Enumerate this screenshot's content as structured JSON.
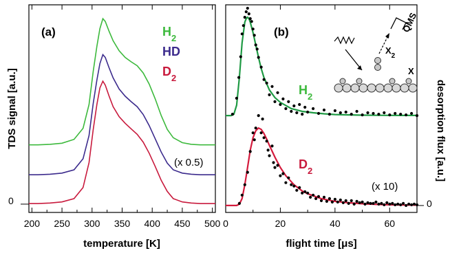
{
  "colors": {
    "H2": "#3cb93c",
    "HD": "#3b2a8c",
    "D2": "#c8193c",
    "fit_H2": "#1f9a44",
    "fit_D2": "#d41a3c",
    "points": "#000000"
  },
  "chart_data": [
    {
      "type": "line",
      "panel_label": "(a)",
      "xlabel": "temperature [K]",
      "ylabel": "TDS signal [a.u.]",
      "xlim": [
        195,
        505
      ],
      "xticks": [
        200,
        250,
        300,
        350,
        400,
        450,
        500
      ],
      "ylim": [
        -0.15,
        3.6
      ],
      "zero_label": "0",
      "annotation": "(x 0.5)",
      "series": [
        {
          "name": "H",
          "sub": "2",
          "offset": 1.05,
          "color": "H2",
          "x": [
            195,
            210,
            230,
            250,
            270,
            285,
            295,
            302,
            308,
            313,
            318,
            322,
            328,
            335,
            345,
            355,
            365,
            375,
            385,
            395,
            405,
            415,
            425,
            435,
            450,
            465,
            480,
            495,
            505
          ],
          "y": [
            0.02,
            0.02,
            0.03,
            0.05,
            0.12,
            0.32,
            0.75,
            1.35,
            1.8,
            2.12,
            2.3,
            2.25,
            2.08,
            1.9,
            1.72,
            1.6,
            1.52,
            1.45,
            1.32,
            1.12,
            0.85,
            0.55,
            0.3,
            0.15,
            0.06,
            0.03,
            0.02,
            0.02,
            0.02
          ]
        },
        {
          "name": "HD",
          "sub": "",
          "offset": 0.52,
          "color": "HD",
          "x": [
            195,
            210,
            230,
            250,
            270,
            285,
            295,
            302,
            308,
            313,
            318,
            322,
            328,
            335,
            345,
            355,
            365,
            375,
            385,
            395,
            405,
            415,
            425,
            435,
            450,
            465,
            480,
            495,
            505
          ],
          "y": [
            0.01,
            0.01,
            0.02,
            0.04,
            0.1,
            0.3,
            0.72,
            1.3,
            1.72,
            2.02,
            2.18,
            2.13,
            1.95,
            1.76,
            1.56,
            1.43,
            1.33,
            1.24,
            1.1,
            0.9,
            0.66,
            0.42,
            0.22,
            0.1,
            0.04,
            0.02,
            0.01,
            0.01,
            0.01
          ]
        },
        {
          "name": "D",
          "sub": "2",
          "offset": 0.0,
          "color": "D2",
          "x": [
            195,
            210,
            230,
            250,
            270,
            285,
            295,
            302,
            308,
            313,
            318,
            322,
            328,
            335,
            345,
            355,
            365,
            375,
            385,
            395,
            405,
            415,
            425,
            435,
            450,
            465,
            480,
            495,
            505
          ],
          "y": [
            0.01,
            0.01,
            0.02,
            0.04,
            0.1,
            0.3,
            0.75,
            1.35,
            1.8,
            2.1,
            2.22,
            2.15,
            1.96,
            1.76,
            1.58,
            1.46,
            1.36,
            1.26,
            1.12,
            0.92,
            0.68,
            0.43,
            0.23,
            0.1,
            0.04,
            0.02,
            0.01,
            0.01,
            0.01
          ]
        }
      ]
    },
    {
      "type": "scatter",
      "panel_label": "(b)",
      "xlabel": "flight time [μs]",
      "ylabel": "desorption flux [a.u.]",
      "xlim": [
        0,
        70
      ],
      "xticks": [
        0,
        20,
        40,
        60
      ],
      "ylim": [
        -0.1,
        2.9
      ],
      "zero_label": "0",
      "annotation": "(x 10)",
      "inset": {
        "label_qms": "QMS",
        "label_x2": "X",
        "label_x2_sub": "2",
        "label_x": "X"
      },
      "series": [
        {
          "name": "H",
          "sub": "2",
          "offset": 1.3,
          "color": "H2",
          "fit_color": "fit_H2",
          "fit_x": [
            0,
            2,
            3,
            4,
            5,
            6,
            7,
            7.5,
            8,
            8.5,
            9,
            10,
            11,
            12,
            13,
            14,
            16,
            18,
            20,
            24,
            28,
            32,
            36,
            40,
            45,
            50,
            55,
            60,
            65,
            70
          ],
          "fit_y": [
            0,
            0,
            0.02,
            0.15,
            0.55,
            1.05,
            1.35,
            1.4,
            1.42,
            1.4,
            1.35,
            1.2,
            1.02,
            0.84,
            0.68,
            0.55,
            0.37,
            0.26,
            0.19,
            0.1,
            0.06,
            0.04,
            0.025,
            0.015,
            0.01,
            0.006,
            0.004,
            0.003,
            0.002,
            0.002
          ],
          "points_x": [
            2.5,
            4,
            4.8,
            5.5,
            6,
            6.5,
            7,
            7.5,
            8,
            8.5,
            9,
            9.5,
            10,
            10.5,
            11,
            11.5,
            12,
            13,
            14,
            15,
            16,
            17,
            18,
            19,
            20,
            21,
            22,
            23,
            24,
            25,
            26,
            27,
            28,
            29,
            30,
            32,
            34,
            36,
            38,
            40,
            42,
            44,
            46,
            48,
            50,
            52,
            54,
            56,
            58,
            60,
            62,
            64,
            66,
            68,
            70
          ],
          "points_y": [
            0.02,
            0.25,
            0.55,
            0.85,
            1.18,
            1.3,
            1.42,
            1.5,
            1.55,
            1.47,
            1.4,
            1.36,
            1.25,
            1.16,
            1.02,
            0.96,
            0.84,
            0.7,
            0.52,
            0.47,
            0.3,
            0.42,
            0.2,
            0.33,
            0.16,
            0.24,
            0.1,
            0.2,
            0.06,
            0.14,
            0.04,
            0.16,
            0.02,
            0.12,
            0.05,
            0.1,
            0.03,
            0.08,
            0.02,
            0.07,
            0.04,
            0.05,
            0.02,
            0.06,
            0.01,
            0.04,
            0.03,
            0.02,
            0.04,
            0.01,
            0.03,
            0.02,
            0.01,
            0.03,
            0.0
          ]
        },
        {
          "name": "D",
          "sub": "2",
          "offset": 0.0,
          "color": "D2",
          "fit_color": "fit_D2",
          "fit_x": [
            0,
            4,
            5,
            6,
            7,
            8,
            9,
            10,
            11,
            12,
            13,
            14,
            15,
            16,
            18,
            20,
            22,
            25,
            28,
            30,
            35,
            40,
            45,
            50,
            55,
            60,
            65,
            70
          ],
          "fit_y": [
            0,
            0,
            0.02,
            0.1,
            0.3,
            0.55,
            0.8,
            0.98,
            1.08,
            1.12,
            1.1,
            1.04,
            0.96,
            0.87,
            0.7,
            0.55,
            0.43,
            0.3,
            0.21,
            0.17,
            0.1,
            0.06,
            0.04,
            0.025,
            0.016,
            0.01,
            0.007,
            0.005
          ],
          "points_x": [
            5,
            6,
            7,
            8,
            9,
            10,
            10.5,
            11,
            12,
            13,
            13.5,
            14,
            15,
            15.5,
            16,
            17,
            17.5,
            18,
            19,
            20,
            21,
            22,
            23,
            24,
            25,
            26,
            27,
            28,
            29,
            30,
            31,
            32,
            33,
            34,
            35,
            36,
            37,
            38,
            39,
            40,
            41,
            42,
            43,
            44,
            45,
            46,
            47,
            48,
            49,
            50,
            51,
            52,
            53,
            54,
            55,
            56,
            57,
            58,
            59,
            60,
            61,
            62,
            63,
            64,
            65,
            66,
            67,
            68,
            69,
            70
          ],
          "points_y": [
            0.03,
            0.15,
            0.3,
            0.48,
            0.78,
            1.05,
            0.95,
            1.12,
            1.3,
            1.05,
            1.25,
            0.98,
            0.93,
            0.8,
            0.72,
            0.86,
            0.62,
            0.55,
            0.58,
            0.43,
            0.46,
            0.33,
            0.4,
            0.3,
            0.28,
            0.22,
            0.26,
            0.18,
            0.2,
            0.18,
            0.12,
            0.15,
            0.1,
            0.13,
            0.07,
            0.12,
            0.06,
            0.1,
            0.05,
            0.09,
            0.05,
            0.08,
            0.04,
            0.07,
            0.03,
            0.07,
            0.02,
            0.06,
            0.04,
            0.05,
            0.02,
            0.04,
            0.03,
            0.03,
            0.05,
            0.02,
            0.03,
            0.01,
            0.04,
            0.02,
            0.03,
            0.01,
            0.02,
            0.01,
            0.03,
            0.0,
            0.02,
            0.01,
            0.02,
            0.01
          ]
        }
      ]
    }
  ]
}
